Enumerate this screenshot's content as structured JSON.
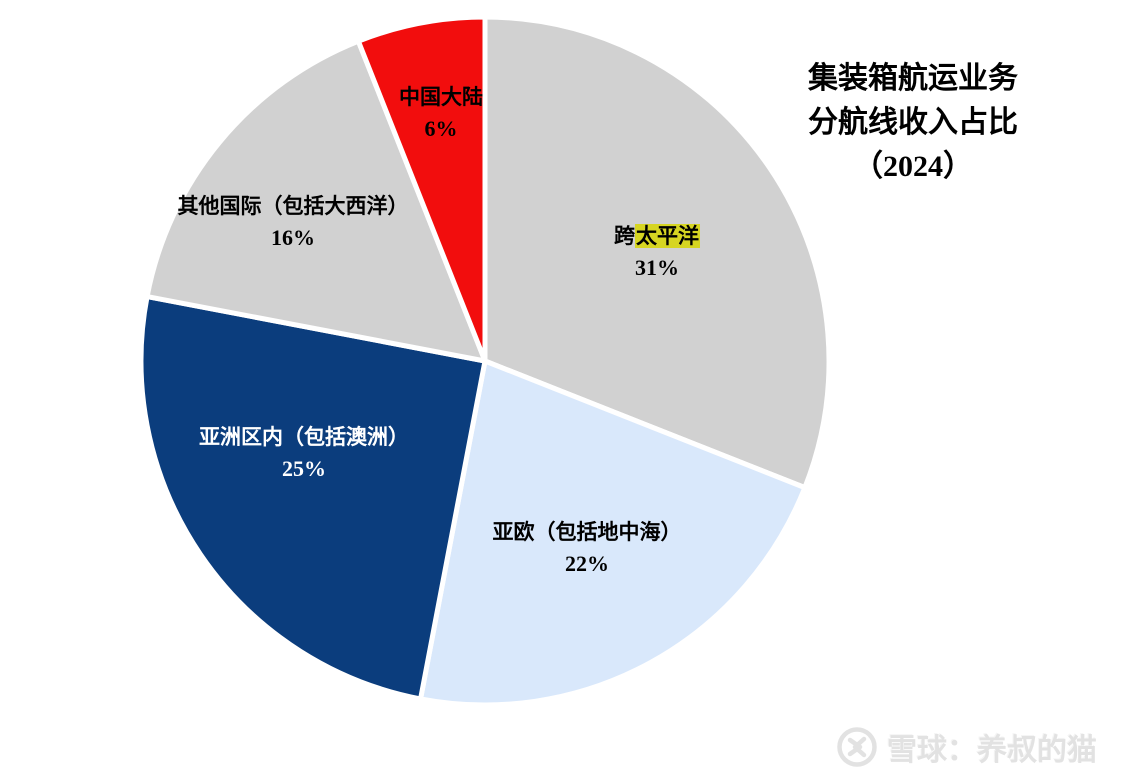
{
  "title": {
    "lines": [
      "集装箱航运业务",
      "分航线收入占比",
      "（2024）"
    ]
  },
  "chart_data": {
    "type": "pie",
    "title": "集装箱航运业务分航线收入占比（2024）",
    "start_angle_deg": 0,
    "direction": "clockwise",
    "legend": "none",
    "slices": [
      {
        "id": "trans-pacific",
        "label": "跨太平洋",
        "label_prefix": "跨",
        "label_highlight": "太平洋",
        "value": 31,
        "percent_label": "31%",
        "color": "#d1d1d1",
        "text_color": "#000000",
        "highlight_color": "#d6d522"
      },
      {
        "id": "asia-europe",
        "label": "亚欧（包括地中海）",
        "value": 22,
        "percent_label": "22%",
        "color": "#d9e8fb",
        "text_color": "#000000"
      },
      {
        "id": "intra-asia",
        "label": "亚洲区内（包括澳洲）",
        "value": 25,
        "percent_label": "25%",
        "color": "#0b3d7d",
        "text_color": "#ffffff"
      },
      {
        "id": "other-international",
        "label": "其他国际（包括大西洋）",
        "value": 16,
        "percent_label": "16%",
        "color": "#d1d1d1",
        "text_color": "#000000"
      },
      {
        "id": "china-mainland",
        "label": "中国大陆",
        "value": 6,
        "percent_label": "6%",
        "color": "#f20d0d",
        "text_color": "#000000"
      }
    ],
    "slice_border_color": "#ffffff"
  },
  "watermark": {
    "text": "雪球：养叔的猫",
    "color": "#e2e2e2",
    "logo": "xueqiu-logo"
  }
}
